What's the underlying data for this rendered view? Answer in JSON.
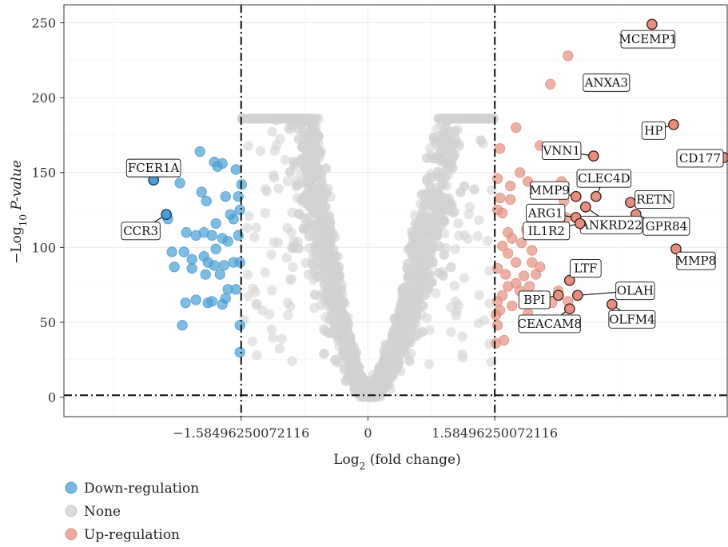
{
  "chart_data": {
    "type": "scatter",
    "xlabel": {
      "main": "Log",
      "sub": "2",
      "rest": " (fold change)"
    },
    "ylabel": {
      "prefix": "−Log",
      "sub": "10",
      "italic": "P-value"
    },
    "xlim": [
      -3.8,
      4.5
    ],
    "ylim": [
      -13,
      262
    ],
    "x_ticks": [
      {
        "value": -1.58496250072116,
        "label": "−1.58496250072116"
      },
      {
        "value": 0,
        "label": "0"
      },
      {
        "value": 1.58496250072116,
        "label": "1.58496250072116"
      }
    ],
    "y_ticks": [
      0,
      50,
      100,
      150,
      200,
      250
    ],
    "thresholds": {
      "x": [
        -1.58496250072116,
        1.58496250072116
      ],
      "y": 1.3
    },
    "grid": true,
    "legend_position": "bottom-left",
    "colors": {
      "down": "#4a9fd6",
      "none": "#d2d2d2",
      "up": "#e49080",
      "down_border": "#0b3552",
      "up_border": "#3a1a14"
    },
    "legend": [
      {
        "key": "down",
        "label": "Down-regulation"
      },
      {
        "key": "none",
        "label": "None"
      },
      {
        "key": "up",
        "label": "Up-regulation"
      }
    ],
    "series": [
      {
        "name": "Down-regulation",
        "key": "down",
        "points": [
          [
            -2.1,
            164
          ],
          [
            -1.92,
            157
          ],
          [
            -1.88,
            154
          ],
          [
            -1.82,
            156
          ],
          [
            -1.65,
            152
          ],
          [
            -1.58,
            142
          ],
          [
            -2.35,
            143
          ],
          [
            -2.08,
            137
          ],
          [
            -2.02,
            131
          ],
          [
            -1.78,
            134
          ],
          [
            -1.62,
            134
          ],
          [
            -1.6,
            125
          ],
          [
            -1.72,
            122
          ],
          [
            -1.68,
            119
          ],
          [
            -2.5,
            119
          ],
          [
            -1.9,
            116
          ],
          [
            -2.05,
            110
          ],
          [
            -2.27,
            110
          ],
          [
            -1.95,
            108
          ],
          [
            -1.82,
            106
          ],
          [
            -1.62,
            108
          ],
          [
            -2.15,
            108
          ],
          [
            -1.75,
            104
          ],
          [
            -1.9,
            99
          ],
          [
            -2.05,
            94
          ],
          [
            -2.3,
            97
          ],
          [
            -2.45,
            97
          ],
          [
            -2.2,
            92
          ],
          [
            -2.0,
            90
          ],
          [
            -1.68,
            90
          ],
          [
            -1.6,
            90
          ],
          [
            -1.8,
            88
          ],
          [
            -1.92,
            88
          ],
          [
            -2.42,
            87
          ],
          [
            -2.2,
            86
          ],
          [
            -1.85,
            82
          ],
          [
            -2.03,
            82
          ],
          [
            -1.65,
            72
          ],
          [
            -1.75,
            72
          ],
          [
            -1.78,
            66
          ],
          [
            -2.15,
            65
          ],
          [
            -1.95,
            64
          ],
          [
            -2.0,
            63
          ],
          [
            -2.28,
            63
          ],
          [
            -1.82,
            62
          ],
          [
            -2.32,
            48
          ],
          [
            -1.6,
            48
          ],
          [
            -1.6,
            30
          ]
        ]
      },
      {
        "name": "None",
        "key": "none"
      },
      {
        "name": "Up-regulation",
        "key": "up",
        "points": [
          [
            2.5,
            228
          ],
          [
            2.28,
            209
          ],
          [
            1.85,
            180
          ],
          [
            2.15,
            168
          ],
          [
            1.65,
            166
          ],
          [
            1.9,
            150
          ],
          [
            1.62,
            146
          ],
          [
            1.78,
            141
          ],
          [
            2.0,
            144
          ],
          [
            2.42,
            144
          ],
          [
            2.45,
            131
          ],
          [
            1.78,
            132
          ],
          [
            1.65,
            133
          ],
          [
            2.48,
            120
          ],
          [
            1.62,
            125
          ],
          [
            1.68,
            123
          ],
          [
            1.98,
            112
          ],
          [
            1.75,
            110
          ],
          [
            1.8,
            106
          ],
          [
            1.92,
            103
          ],
          [
            1.68,
            101
          ],
          [
            1.75,
            96
          ],
          [
            2.05,
            98
          ],
          [
            1.85,
            90
          ],
          [
            2.05,
            90
          ],
          [
            2.15,
            87
          ],
          [
            1.62,
            86
          ],
          [
            1.72,
            82
          ],
          [
            1.95,
            81
          ],
          [
            2.1,
            82
          ],
          [
            1.85,
            76
          ],
          [
            1.75,
            74
          ],
          [
            2.02,
            74
          ],
          [
            1.9,
            71
          ],
          [
            2.38,
            71
          ],
          [
            1.68,
            68
          ],
          [
            2.05,
            67
          ],
          [
            2.15,
            66
          ],
          [
            1.62,
            64
          ],
          [
            2.5,
            64
          ],
          [
            2.3,
            63
          ],
          [
            1.8,
            61
          ],
          [
            1.65,
            58
          ],
          [
            2.0,
            56
          ],
          [
            1.6,
            55
          ],
          [
            1.62,
            48
          ],
          [
            1.7,
            38
          ],
          [
            1.6,
            36
          ]
        ]
      }
    ],
    "labeled_genes": [
      {
        "name": "MCEMP1",
        "x": 3.55,
        "y": 249,
        "group": "up",
        "label_dx": -0.05,
        "label_dy": -10
      },
      {
        "name": "ANXA3",
        "x": 3.08,
        "y": 212,
        "group": "up",
        "label_dx": -0.1,
        "label_dy": -2
      },
      {
        "name": "HP",
        "x": 3.82,
        "y": 182,
        "group": "up",
        "label_dx": -0.25,
        "label_dy": -4
      },
      {
        "name": "CD177",
        "x": 4.45,
        "y": 160,
        "group": "up",
        "label_dx": -0.3,
        "label_dy": -0.5
      },
      {
        "name": "VNN1",
        "x": 2.82,
        "y": 161,
        "group": "up",
        "label_dx": -0.4,
        "label_dy": 3.5
      },
      {
        "name": "CLEC4D",
        "x": 2.85,
        "y": 134,
        "group": "up",
        "label_dx": 0.1,
        "label_dy": 12
      },
      {
        "name": "MMP9",
        "x": 2.6,
        "y": 134,
        "group": "up",
        "label_dx": -0.33,
        "label_dy": 4
      },
      {
        "name": "RETN",
        "x": 3.28,
        "y": 130,
        "group": "up",
        "label_dx": 0.3,
        "label_dy": 2
      },
      {
        "name": "GPR84",
        "x": 3.35,
        "y": 122,
        "group": "up",
        "label_dx": 0.38,
        "label_dy": -8
      },
      {
        "name": "ARG1",
        "x": 2.6,
        "y": 120,
        "group": "up",
        "label_dx": -0.38,
        "label_dy": 3
      },
      {
        "name": "ANKRD22",
        "x": 2.72,
        "y": 127,
        "group": "up",
        "label_dx": 0.32,
        "label_dy": -12
      },
      {
        "name": "IL1R2",
        "x": 2.65,
        "y": 116,
        "group": "up",
        "label_dx": -0.42,
        "label_dy": -5
      },
      {
        "name": "MMP8",
        "x": 3.85,
        "y": 99,
        "group": "up",
        "label_dx": 0.25,
        "label_dy": -8
      },
      {
        "name": "LTF",
        "x": 2.52,
        "y": 78,
        "group": "up",
        "label_dx": 0.2,
        "label_dy": 8
      },
      {
        "name": "OLAH",
        "x": 2.62,
        "y": 68,
        "group": "up",
        "label_dx": 0.72,
        "label_dy": 3
      },
      {
        "name": "BPI",
        "x": 2.38,
        "y": 68,
        "group": "up",
        "label_dx": -0.3,
        "label_dy": -3
      },
      {
        "name": "OLFM4",
        "x": 3.05,
        "y": 62,
        "group": "up",
        "label_dx": 0.25,
        "label_dy": -10
      },
      {
        "name": "CEACAM8",
        "x": 2.52,
        "y": 59,
        "group": "up",
        "label_dx": -0.25,
        "label_dy": -10
      },
      {
        "name": "FCER1A",
        "x": -2.68,
        "y": 145,
        "group": "down",
        "label_dx": 0.0,
        "label_dy": 8
      },
      {
        "name": "CCR3",
        "x": -2.52,
        "y": 122,
        "group": "down",
        "label_dx": -0.32,
        "label_dy": -11
      }
    ]
  }
}
